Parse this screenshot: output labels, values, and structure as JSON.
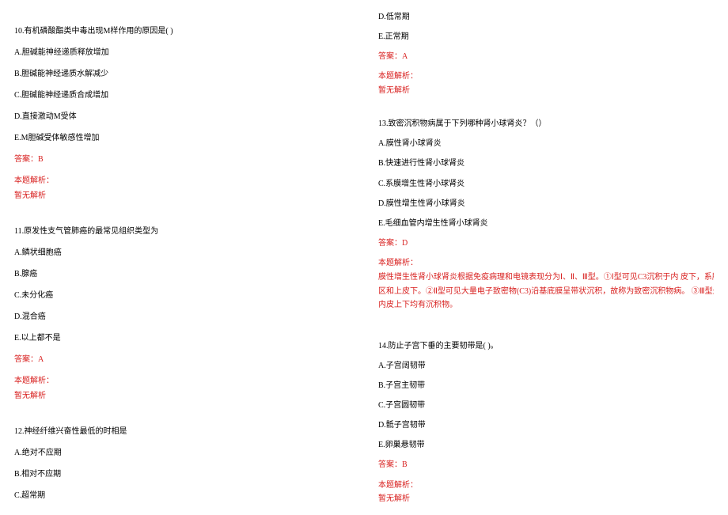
{
  "colors": {
    "text": "#000000",
    "answer": "#d8201f",
    "background": "#ffffff"
  },
  "typography": {
    "font_family": "SimSun",
    "font_size_pt": 10,
    "line_height": 1.9
  },
  "left_column": {
    "q10": {
      "stem": "10.有机磷酸酯类中毒出现M样作用的原因是(  )",
      "A": "A.胆碱能神经递质释放增加",
      "B": "B.胆碱能神经递质水解减少",
      "C": "C.胆碱能神经递质合成增加",
      "D": "D.直接激动M受体",
      "E": "E.M胆碱受体敏感性增加",
      "answer": "答案：B",
      "explain_label": "本题解析：",
      "explain_body": "暂无解析"
    },
    "q11": {
      "stem": "11.原发性支气管肺癌的最常见组织类型为",
      "A": "A.鳞状细胞癌",
      "B": "B.腺癌",
      "C": "C.未分化癌",
      "D": "D.混合癌",
      "E": "E.以上都不是",
      "answer": "答案：A",
      "explain_label": "本题解析：",
      "explain_body": "暂无解析"
    },
    "q12": {
      "stem": "12.神经纤维兴奋性最低的时相是",
      "A": "A.绝对不应期",
      "B": "B.相对不应期",
      "C": "C.超常期"
    }
  },
  "right_column": {
    "q12_cont": {
      "D": "D.低常期",
      "E": "E.正常期",
      "answer": "答案：A",
      "explain_label": "本题解析：",
      "explain_body": "暂无解析"
    },
    "q13": {
      "stem": "13.致密沉积物病属于下列哪种肾小球肾炎？（）",
      "A": "A.膜性肾小球肾炎",
      "B": "B.快速进行性肾小球肾炎",
      "C": "C.系膜增生性肾小球肾炎",
      "D": "D.膜性增生性肾小球肾炎",
      "E": "E.毛细血管内增生性肾小球肾炎",
      "answer": "答案：D",
      "explain_label": "本题解析：",
      "explain_l1": "膜性增生性肾小球肾炎根据免疫病理和电镜表现分为Ⅰ、Ⅱ、Ⅲ型。①Ⅰ型可见C3沉积于内 皮下，系膜",
      "explain_l2": "区和上皮下。②Ⅱ型可见大量电子致密物(C3)沿基底膜呈带状沉积，故称为致密沉积物病。 ③Ⅲ型少见，",
      "explain_l3": "内皮上下均有沉积物。"
    },
    "q14": {
      "stem": "14.防止子宫下垂的主要韧带是( )。",
      "A": "A.子宫阔韧带",
      "B": "B.子宫主韧带",
      "C": "C.子宫圆韧带",
      "D": "D.骶子宫韧带",
      "E": "E.卵巢悬韧带",
      "answer": "答案：B",
      "explain_label": "本题解析：",
      "explain_body": "暂无解析"
    }
  }
}
